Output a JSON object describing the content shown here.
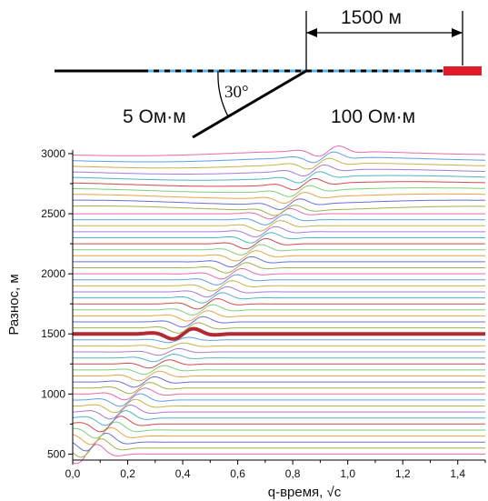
{
  "schema": {
    "distance_label": "1500 м",
    "angle_label": "30°",
    "left_layer_label": "5 Ом·м",
    "right_layer_label": "100 Ом·м"
  },
  "chart_data": {
    "type": "line",
    "title": "",
    "xlabel": "q-время, √c",
    "ylabel": "Разнос, м",
    "xlim": [
      0.0,
      1.5
    ],
    "ylim": [
      450,
      3030
    ],
    "x_ticks": [
      "0,0",
      "0,2",
      "0,4",
      "0,6",
      "0,8",
      "1,0",
      "1,2",
      "1,4"
    ],
    "y_ticks": [
      "500",
      "1000",
      "1500",
      "2000",
      "2500",
      "3000"
    ],
    "offsets": {
      "start": 500,
      "end": 3000,
      "step": 50
    },
    "highlighted_offset": 1500,
    "highlight_color": "#b22a33",
    "palette": [
      "#e86aa8",
      "#9bb24a",
      "#6a6fd6",
      "#e9a34b",
      "#7fcf7a",
      "#d04a4a",
      "#4fb3c8",
      "#a77bd6",
      "#c8b04a",
      "#5f9fe0"
    ],
    "series_note": "one trace per offset 500–3000 m (step 50 m)"
  }
}
